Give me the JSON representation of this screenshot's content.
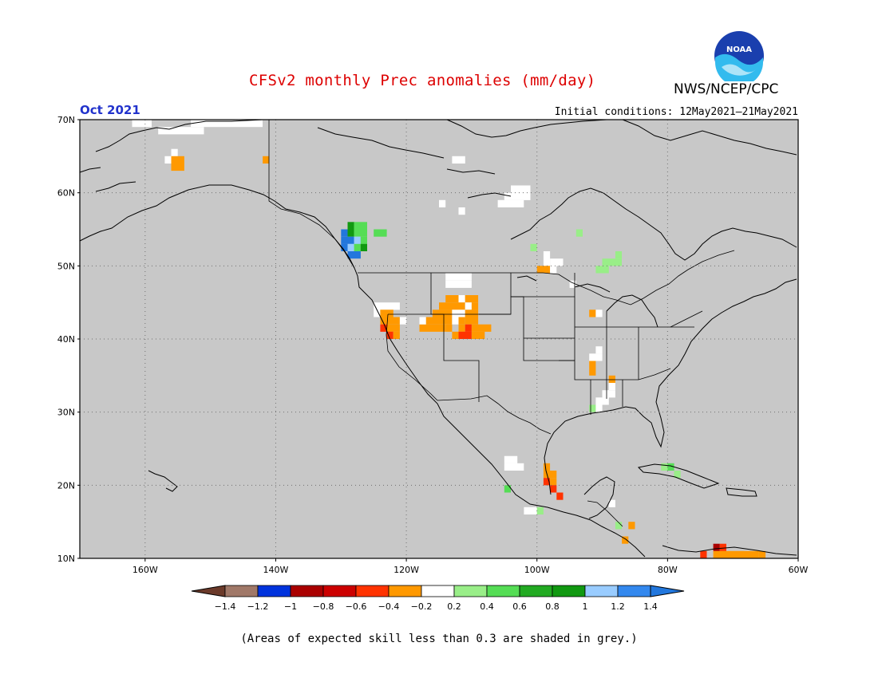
{
  "header": {
    "title": "CFSv2 monthly Prec anomalies (mm/day)",
    "org": "NWS/NCEP/CPC",
    "logo_text": "NOAA",
    "month": "Oct 2021",
    "init": "Initial conditions: 12May2021–21May2021"
  },
  "map": {
    "lat_labels": [
      "70N",
      "60N",
      "50N",
      "40N",
      "30N",
      "20N",
      "10N"
    ],
    "lon_labels": [
      "160W",
      "140W",
      "120W",
      "100W",
      "80W",
      "60W"
    ],
    "background": "#c8c8c8",
    "cells": [
      {
        "lat": 69.5,
        "lon": -162,
        "w": 3,
        "h": 1,
        "cat": "white"
      },
      {
        "lat": 69.5,
        "lon": -153,
        "w": 8,
        "h": 1,
        "cat": "white"
      },
      {
        "lat": 69.5,
        "lon": -145,
        "w": 3,
        "h": 1,
        "cat": "white"
      },
      {
        "lat": 68.5,
        "lon": -158,
        "w": 7,
        "h": 1,
        "cat": "white"
      },
      {
        "lat": 65.5,
        "lon": -156,
        "w": 1,
        "h": 1,
        "cat": "white"
      },
      {
        "lat": 64.5,
        "lon": -157,
        "w": 1,
        "h": 1,
        "cat": "white"
      },
      {
        "lat": 64.5,
        "lon": -156,
        "w": 2,
        "h": 2,
        "cat": "orange"
      },
      {
        "lat": 64.5,
        "lon": -142,
        "w": 1,
        "h": 1,
        "cat": "orange"
      },
      {
        "lat": 64.5,
        "lon": -113,
        "w": 2,
        "h": 1,
        "cat": "white"
      },
      {
        "lat": 60.5,
        "lon": -104,
        "w": 3,
        "h": 1,
        "cat": "white"
      },
      {
        "lat": 59.5,
        "lon": -105,
        "w": 4,
        "h": 1,
        "cat": "white"
      },
      {
        "lat": 58.5,
        "lon": -106,
        "w": 4,
        "h": 1,
        "cat": "white"
      },
      {
        "lat": 57.5,
        "lon": -112,
        "w": 1,
        "h": 1,
        "cat": "white"
      },
      {
        "lat": 58.5,
        "lon": -115,
        "w": 1,
        "h": 1,
        "cat": "white"
      },
      {
        "lat": 55.5,
        "lon": -129,
        "w": 1,
        "h": 1,
        "cat": "dgreen"
      },
      {
        "lat": 55.5,
        "lon": -128,
        "w": 2,
        "h": 1,
        "cat": "green"
      },
      {
        "lat": 54.5,
        "lon": -130,
        "w": 1,
        "h": 1,
        "cat": "blue"
      },
      {
        "lat": 54.5,
        "lon": -129,
        "w": 1,
        "h": 1,
        "cat": "dgreen"
      },
      {
        "lat": 54.5,
        "lon": -128,
        "w": 2,
        "h": 1,
        "cat": "green"
      },
      {
        "lat": 54.5,
        "lon": -125,
        "w": 2,
        "h": 1,
        "cat": "green"
      },
      {
        "lat": 53.5,
        "lon": -130,
        "w": 1,
        "h": 1,
        "cat": "blue"
      },
      {
        "lat": 53.5,
        "lon": -129,
        "w": 1,
        "h": 1,
        "cat": "blue"
      },
      {
        "lat": 53.5,
        "lon": -128,
        "w": 1,
        "h": 1,
        "cat": "lblue"
      },
      {
        "lat": 53.5,
        "lon": -127,
        "w": 1,
        "h": 1,
        "cat": "green"
      },
      {
        "lat": 52.5,
        "lon": -130,
        "w": 1,
        "h": 1,
        "cat": "blue"
      },
      {
        "lat": 52.5,
        "lon": -129,
        "w": 1,
        "h": 1,
        "cat": "lblue"
      },
      {
        "lat": 52.5,
        "lon": -128,
        "w": 1,
        "h": 1,
        "cat": "green"
      },
      {
        "lat": 52.5,
        "lon": -127,
        "w": 1,
        "h": 1,
        "cat": "dgreen"
      },
      {
        "lat": 51.5,
        "lon": -129,
        "w": 2,
        "h": 1,
        "cat": "blue"
      },
      {
        "lat": 54.5,
        "lon": -94,
        "w": 1,
        "h": 1,
        "cat": "lgreen"
      },
      {
        "lat": 52.5,
        "lon": -101,
        "w": 1,
        "h": 1,
        "cat": "lgreen"
      },
      {
        "lat": 51.5,
        "lon": -99,
        "w": 1,
        "h": 2,
        "cat": "white"
      },
      {
        "lat": 50.5,
        "lon": -98,
        "w": 2,
        "h": 1,
        "cat": "white"
      },
      {
        "lat": 49.5,
        "lon": -100,
        "w": 2,
        "h": 1,
        "cat": "orange"
      },
      {
        "lat": 49.5,
        "lon": -98,
        "w": 1,
        "h": 1,
        "cat": "white"
      },
      {
        "lat": 51.5,
        "lon": -88,
        "w": 1,
        "h": 1,
        "cat": "lgreen"
      },
      {
        "lat": 50.5,
        "lon": -90,
        "w": 3,
        "h": 1,
        "cat": "lgreen"
      },
      {
        "lat": 49.5,
        "lon": -91,
        "w": 2,
        "h": 1,
        "cat": "lgreen"
      },
      {
        "lat": 47.5,
        "lon": -95,
        "w": 1,
        "h": 1,
        "cat": "white"
      },
      {
        "lat": 43.5,
        "lon": -92,
        "w": 1,
        "h": 1,
        "cat": "orange"
      },
      {
        "lat": 43.5,
        "lon": -91,
        "w": 1,
        "h": 1,
        "cat": "white"
      },
      {
        "lat": 48.5,
        "lon": -114,
        "w": 4,
        "h": 1,
        "cat": "white"
      },
      {
        "lat": 47.5,
        "lon": -114,
        "w": 4,
        "h": 1,
        "cat": "white"
      },
      {
        "lat": 45.5,
        "lon": -114,
        "w": 2,
        "h": 1,
        "cat": "orange"
      },
      {
        "lat": 45.5,
        "lon": -112,
        "w": 1,
        "h": 1,
        "cat": "white"
      },
      {
        "lat": 45.5,
        "lon": -111,
        "w": 2,
        "h": 1,
        "cat": "orange"
      },
      {
        "lat": 44.5,
        "lon": -115,
        "w": 4,
        "h": 1,
        "cat": "orange"
      },
      {
        "lat": 44.5,
        "lon": -111,
        "w": 1,
        "h": 1,
        "cat": "white"
      },
      {
        "lat": 44.5,
        "lon": -110,
        "w": 1,
        "h": 1,
        "cat": "orange"
      },
      {
        "lat": 43.5,
        "lon": -116,
        "w": 3,
        "h": 1,
        "cat": "orange"
      },
      {
        "lat": 43.5,
        "lon": -113,
        "w": 2,
        "h": 1,
        "cat": "white"
      },
      {
        "lat": 43.5,
        "lon": -111,
        "w": 2,
        "h": 1,
        "cat": "orange"
      },
      {
        "lat": 42.5,
        "lon": -117,
        "w": 4,
        "h": 1,
        "cat": "orange"
      },
      {
        "lat": 42.5,
        "lon": -113,
        "w": 1,
        "h": 1,
        "cat": "white"
      },
      {
        "lat": 42.5,
        "lon": -112,
        "w": 1,
        "h": 1,
        "cat": "orange"
      },
      {
        "lat": 42.5,
        "lon": -111,
        "w": 2,
        "h": 1,
        "cat": "orange"
      },
      {
        "lat": 41.5,
        "lon": -118,
        "w": 4,
        "h": 1,
        "cat": "orange"
      },
      {
        "lat": 41.5,
        "lon": -114,
        "w": 1,
        "h": 1,
        "cat": "orange"
      },
      {
        "lat": 41.5,
        "lon": -112,
        "w": 1,
        "h": 1,
        "cat": "orange"
      },
      {
        "lat": 41.5,
        "lon": -111,
        "w": 1,
        "h": 1,
        "cat": "red"
      },
      {
        "lat": 41.5,
        "lon": -110,
        "w": 3,
        "h": 1,
        "cat": "orange"
      },
      {
        "lat": 40.5,
        "lon": -113,
        "w": 1,
        "h": 1,
        "cat": "orange"
      },
      {
        "lat": 40.5,
        "lon": -112,
        "w": 2,
        "h": 1,
        "cat": "red"
      },
      {
        "lat": 40.5,
        "lon": -110,
        "w": 2,
        "h": 1,
        "cat": "orange"
      },
      {
        "lat": 44.5,
        "lon": -125,
        "w": 4,
        "h": 1,
        "cat": "white"
      },
      {
        "lat": 43.5,
        "lon": -125,
        "w": 1,
        "h": 1,
        "cat": "white"
      },
      {
        "lat": 43.5,
        "lon": -124,
        "w": 2,
        "h": 1,
        "cat": "orange"
      },
      {
        "lat": 42.5,
        "lon": -124,
        "w": 3,
        "h": 1,
        "cat": "orange"
      },
      {
        "lat": 42.5,
        "lon": -121,
        "w": 1,
        "h": 1,
        "cat": "white"
      },
      {
        "lat": 41.5,
        "lon": -124,
        "w": 1,
        "h": 1,
        "cat": "red"
      },
      {
        "lat": 41.5,
        "lon": -123,
        "w": 2,
        "h": 1,
        "cat": "orange"
      },
      {
        "lat": 40.5,
        "lon": -123,
        "w": 1,
        "h": 1,
        "cat": "red"
      },
      {
        "lat": 40.5,
        "lon": -122,
        "w": 1,
        "h": 1,
        "cat": "orange"
      },
      {
        "lat": 42.5,
        "lon": -118,
        "w": 1,
        "h": 1,
        "cat": "white"
      },
      {
        "lat": 38.5,
        "lon": -91,
        "w": 1,
        "h": 1,
        "cat": "white"
      },
      {
        "lat": 37.5,
        "lon": -92,
        "w": 2,
        "h": 1,
        "cat": "white"
      },
      {
        "lat": 36.5,
        "lon": -92,
        "w": 1,
        "h": 2,
        "cat": "orange"
      },
      {
        "lat": 34.5,
        "lon": -89,
        "w": 1,
        "h": 1,
        "cat": "orange"
      },
      {
        "lat": 33.5,
        "lon": -89,
        "w": 1,
        "h": 1,
        "cat": "white"
      },
      {
        "lat": 32.5,
        "lon": -90,
        "w": 2,
        "h": 1,
        "cat": "white"
      },
      {
        "lat": 31.5,
        "lon": -91,
        "w": 2,
        "h": 1,
        "cat": "white"
      },
      {
        "lat": 30.5,
        "lon": -92,
        "w": 1,
        "h": 1,
        "cat": "lgreen"
      },
      {
        "lat": 30.5,
        "lon": -91,
        "w": 1,
        "h": 1,
        "cat": "white"
      },
      {
        "lat": 23.5,
        "lon": -105,
        "w": 2,
        "h": 1,
        "cat": "white"
      },
      {
        "lat": 22.5,
        "lon": -105,
        "w": 3,
        "h": 1,
        "cat": "white"
      },
      {
        "lat": 22.5,
        "lon": -99,
        "w": 1,
        "h": 1,
        "cat": "orange"
      },
      {
        "lat": 21.5,
        "lon": -99,
        "w": 2,
        "h": 1,
        "cat": "orange"
      },
      {
        "lat": 20.5,
        "lon": -99,
        "w": 1,
        "h": 1,
        "cat": "red"
      },
      {
        "lat": 20.5,
        "lon": -98,
        "w": 1,
        "h": 1,
        "cat": "orange"
      },
      {
        "lat": 19.5,
        "lon": -98,
        "w": 1,
        "h": 1,
        "cat": "red"
      },
      {
        "lat": 18.5,
        "lon": -97,
        "w": 1,
        "h": 1,
        "cat": "red"
      },
      {
        "lat": 19.5,
        "lon": -105,
        "w": 1,
        "h": 1,
        "cat": "green"
      },
      {
        "lat": 16.5,
        "lon": -102,
        "w": 2,
        "h": 1,
        "cat": "white"
      },
      {
        "lat": 16.5,
        "lon": -100,
        "w": 1,
        "h": 1,
        "cat": "lgreen"
      },
      {
        "lat": 17.5,
        "lon": -89,
        "w": 1,
        "h": 1,
        "cat": "white"
      },
      {
        "lat": 14.5,
        "lon": -88,
        "w": 1,
        "h": 1,
        "cat": "lgreen"
      },
      {
        "lat": 14.5,
        "lon": -86,
        "w": 1,
        "h": 1,
        "cat": "orange"
      },
      {
        "lat": 12.5,
        "lon": -87,
        "w": 1,
        "h": 1,
        "cat": "orange"
      },
      {
        "lat": 22.5,
        "lon": -81,
        "w": 1,
        "h": 1,
        "cat": "lgreen"
      },
      {
        "lat": 22.5,
        "lon": -80,
        "w": 1,
        "h": 1,
        "cat": "green"
      },
      {
        "lat": 21.5,
        "lon": -79,
        "w": 1,
        "h": 1,
        "cat": "lgreen"
      },
      {
        "lat": 10.5,
        "lon": -75,
        "w": 1,
        "h": 1,
        "cat": "red"
      },
      {
        "lat": 11.5,
        "lon": -73,
        "w": 1,
        "h": 1,
        "cat": "dred"
      },
      {
        "lat": 11.5,
        "lon": -72,
        "w": 1,
        "h": 1,
        "cat": "red"
      },
      {
        "lat": 10.5,
        "lon": -73,
        "w": 2,
        "h": 1,
        "cat": "orange"
      },
      {
        "lat": 10.5,
        "lon": -71,
        "w": 3,
        "h": 1,
        "cat": "orange"
      },
      {
        "lat": 10.5,
        "lon": -68,
        "w": 2,
        "h": 1,
        "cat": "orange"
      },
      {
        "lat": 10.5,
        "lon": -66,
        "w": 1,
        "h": 1,
        "cat": "orange"
      }
    ]
  },
  "colorbar": {
    "labels": [
      "-1.4",
      "-1.2",
      "-1",
      "-0.8",
      "-0.6",
      "-0.4",
      "-0.2",
      "0.2",
      "0.4",
      "0.6",
      "0.8",
      "1",
      "1.2",
      "1.4"
    ],
    "colors": [
      "#6b3a2a",
      "#a07868",
      "#0033dd",
      "#aa0000",
      "#cc0000",
      "#ff3300",
      "#ff9900",
      "#ffffff",
      "#99ee88",
      "#55dd55",
      "#22aa22",
      "#119911",
      "#99ccff",
      "#3388ee",
      "#2277dd"
    ]
  },
  "footnote": "(Areas of expected skill less than 0.3 are shaded in grey.)"
}
